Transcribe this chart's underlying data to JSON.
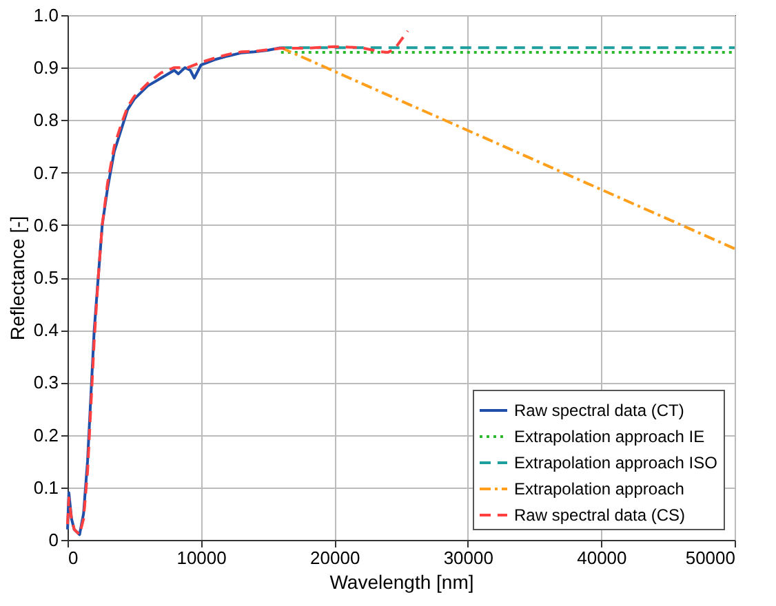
{
  "chart_data": {
    "type": "line",
    "xlabel": "Wavelength [nm]",
    "ylabel": "Reflectance [-]",
    "xlim": [
      0,
      50000
    ],
    "xticks": [
      0,
      10000,
      20000,
      30000,
      40000,
      50000
    ],
    "ylim": [
      0,
      1
    ],
    "yticks": [
      0,
      0.1,
      0.2,
      0.3,
      0.4,
      0.5,
      0.6,
      0.7,
      0.8,
      0.9,
      {
        "value": 1,
        "label": "1.0"
      }
    ],
    "grid": true,
    "legend": "bottom right",
    "marker": "none",
    "series": [
      {
        "name": "Raw spectral data (CT)",
        "color": "#1f4fa8",
        "line_style": "solid",
        "x": [
          0,
          100,
          300,
          500,
          900,
          1200,
          1500,
          2000,
          2300,
          2600,
          3000,
          3500,
          4000,
          4500,
          5000,
          6000,
          7000,
          8000,
          8300,
          8800,
          9200,
          9500,
          9800,
          10000,
          11000,
          12000,
          13000,
          14000,
          15000,
          16000
        ],
        "values": [
          0.02,
          0.09,
          0.04,
          0.02,
          0.01,
          0.05,
          0.15,
          0.4,
          0.5,
          0.6,
          0.67,
          0.74,
          0.78,
          0.82,
          0.84,
          0.865,
          0.88,
          0.895,
          0.888,
          0.9,
          0.895,
          0.88,
          0.895,
          0.905,
          0.915,
          0.922,
          0.928,
          0.93,
          0.933,
          0.938
        ]
      },
      {
        "name": "Extrapolation approach IE",
        "color": "#2db82d",
        "line_style": "dotted",
        "x": [
          16000,
          50000
        ],
        "values": [
          0.929,
          0.929
        ]
      },
      {
        "name": "Extrapolation approach ISO",
        "color": "#1f9e9e",
        "line_style": "dashed",
        "x": [
          16000,
          50000
        ],
        "values": [
          0.938,
          0.938
        ]
      },
      {
        "name": "Extrapolation approach",
        "color": "#ff9f1c",
        "line_style": "dashdot",
        "x": [
          16000,
          50000
        ],
        "values": [
          0.938,
          0.555
        ]
      },
      {
        "name": "Raw spectral data (CS)",
        "color": "#ff4040",
        "line_style": "dashed",
        "x": [
          0,
          100,
          300,
          500,
          900,
          1200,
          1500,
          2000,
          2300,
          2600,
          3000,
          3500,
          4000,
          4500,
          5000,
          6000,
          7000,
          8000,
          9000,
          10000,
          11000,
          12000,
          13000,
          14000,
          15000,
          16000,
          18000,
          20000,
          22000,
          23500,
          24000,
          24500,
          25500
        ],
        "values": [
          0.03,
          0.08,
          0.04,
          0.02,
          0.01,
          0.04,
          0.13,
          0.38,
          0.5,
          0.6,
          0.68,
          0.75,
          0.79,
          0.825,
          0.845,
          0.87,
          0.89,
          0.9,
          0.9,
          0.91,
          0.918,
          0.925,
          0.93,
          0.931,
          0.934,
          0.937,
          0.937,
          0.94,
          0.938,
          0.93,
          0.929,
          0.935,
          0.97
        ]
      }
    ]
  }
}
